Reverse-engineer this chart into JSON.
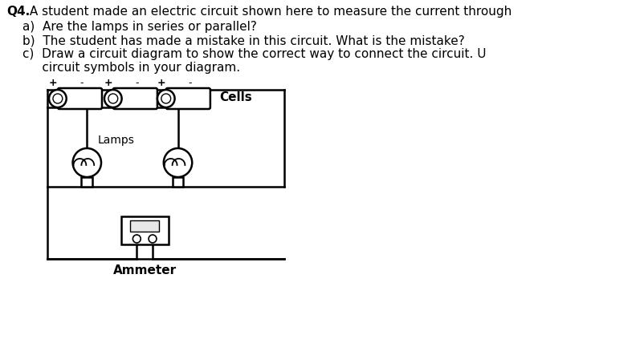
{
  "title_q4": "Q4.",
  "title_text": " A student made an electric circuit shown here to measure the current through",
  "line_a": "a)  Are the lamps in series or parallel?",
  "line_b": "b)  The student has made a mistake in this circuit. What is the mistake?",
  "line_c1": "c)  Draw a circuit diagram to show the correct way to connect the circuit. U",
  "line_c2": "     circuit symbols in your diagram.",
  "label_cells": "Cells",
  "label_lamps": "Lamps",
  "label_ammeter": "Ammeter",
  "bg_color": "#ffffff",
  "line_color": "#000000",
  "lw": 1.8
}
